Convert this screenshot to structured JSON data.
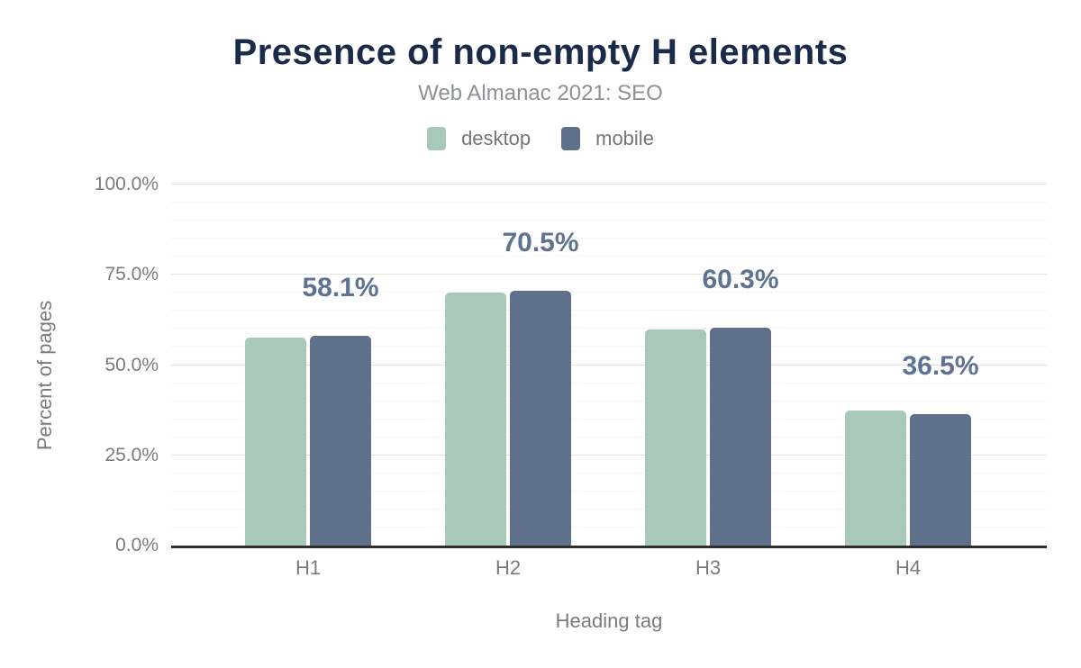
{
  "title": "Presence of non-empty H elements",
  "subtitle": "Web Almanac 2021: SEO",
  "legend": [
    {
      "label": "desktop",
      "color": "#a8c9b8"
    },
    {
      "label": "mobile",
      "color": "#5f708a"
    }
  ],
  "colors": {
    "title": "#1a2b49",
    "subtitle_text": "#8d9194",
    "axis_text": "#7b7b7b",
    "legend_text": "#757575",
    "value_label": "#5e7292",
    "desktop_bar": "#a8c9b8",
    "mobile_bar": "#5f708a",
    "axis_line": "#2d2d2d",
    "grid_major": "#e3e3e3",
    "grid_minor": "#f4f4f4"
  },
  "chart_data": {
    "type": "bar",
    "title": "Presence of non-empty H elements",
    "subtitle": "Web Almanac 2021: SEO",
    "categories": [
      "H1",
      "H2",
      "H3",
      "H4"
    ],
    "series": [
      {
        "name": "desktop",
        "color": "#a8c9b8",
        "values": [
          57.5,
          70.1,
          59.9,
          37.3
        ]
      },
      {
        "name": "mobile",
        "color": "#5f708a",
        "values": [
          58.1,
          70.5,
          60.3,
          36.5
        ]
      }
    ],
    "data_labels": [
      "58.1%",
      "70.5%",
      "60.3%",
      "36.5%"
    ],
    "data_label_series": "mobile",
    "xlabel": "Heading tag",
    "ylabel": "Percent of pages",
    "ylim": [
      0,
      100
    ],
    "yticks": [
      "0.0%",
      "25.0%",
      "50.0%",
      "75.0%",
      "100.0%"
    ],
    "grid": {
      "on": true,
      "major_step": 25,
      "minor_step": 5
    },
    "legend_position": "top"
  }
}
